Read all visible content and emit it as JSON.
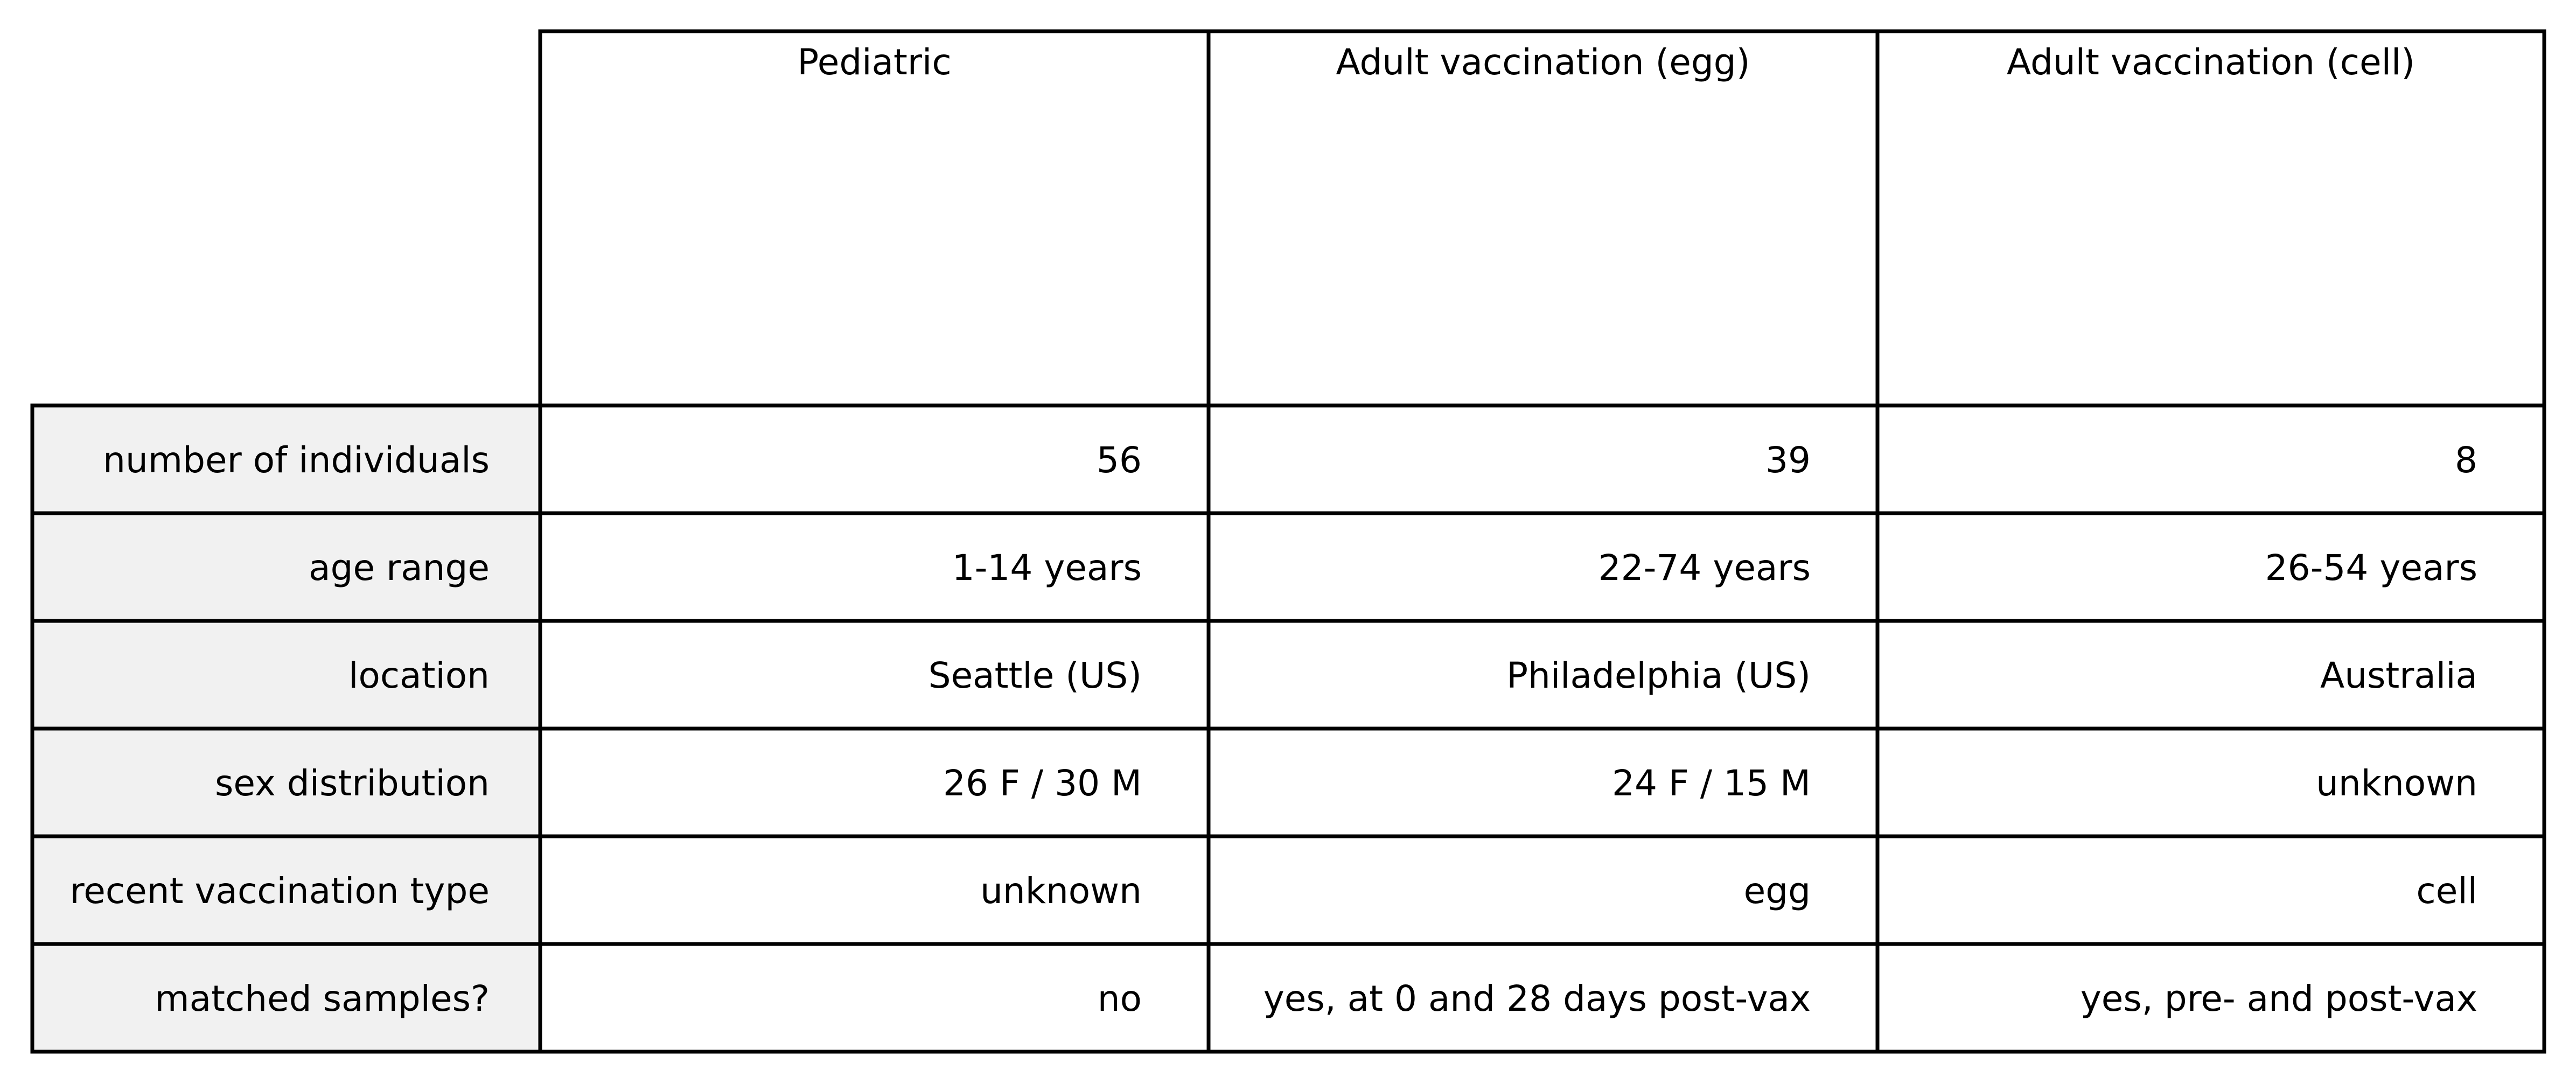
{
  "chart_data": {
    "type": "table",
    "columns": [
      "Pediatric",
      "Adult vaccination (egg)",
      "Adult vaccination (cell)"
    ],
    "rows": [
      {
        "label": "number of individuals",
        "values": [
          "56",
          "39",
          "8"
        ]
      },
      {
        "label": "age range",
        "values": [
          "1-14 years",
          "22-74 years",
          "26-54 years"
        ]
      },
      {
        "label": "location",
        "values": [
          "Seattle (US)",
          "Philadelphia (US)",
          "Australia"
        ]
      },
      {
        "label": "sex distribution",
        "values": [
          "26 F / 30 M",
          "24 F / 15 M",
          "unknown"
        ]
      },
      {
        "label": "recent vaccination type",
        "values": [
          "unknown",
          "egg",
          "cell"
        ]
      },
      {
        "label": "matched samples?",
        "values": [
          "no",
          "yes, at 0 and 28 days post-vax",
          "yes, pre- and post-vax"
        ]
      }
    ]
  },
  "colors": {
    "label_cell_fill": "#f1f1f1",
    "cell_fill": "#ffffff",
    "grid_line": "#000000",
    "text": "#000000"
  }
}
